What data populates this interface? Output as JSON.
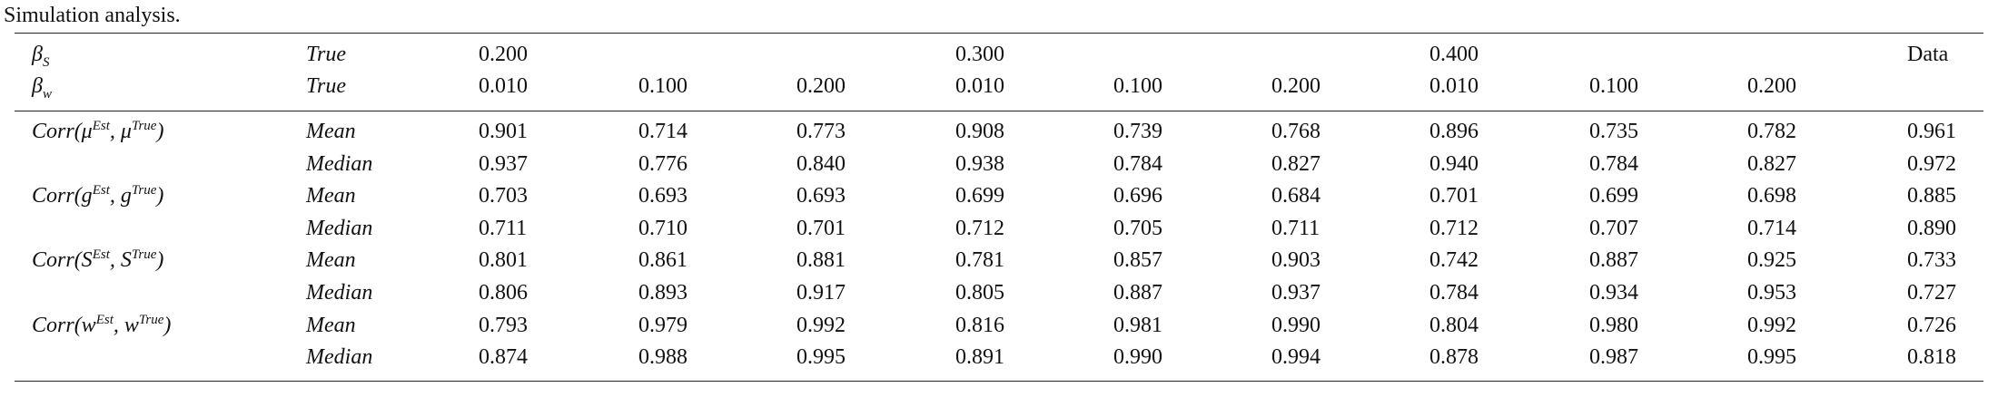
{
  "caption": "Simulation analysis.",
  "header": [
    {
      "label": [
        {
          "t": "β"
        },
        {
          "sub": "S"
        }
      ],
      "stat": "True",
      "cells": [
        "0.200",
        null,
        null,
        "0.300",
        null,
        null,
        "0.400",
        null,
        null,
        "Data"
      ]
    },
    {
      "label": [
        {
          "t": "β"
        },
        {
          "sub": "w"
        }
      ],
      "stat": "True",
      "cells": [
        "0.010",
        "0.100",
        "0.200",
        "0.010",
        "0.100",
        "0.200",
        "0.010",
        "0.100",
        "0.200",
        null
      ]
    }
  ],
  "groups": [
    {
      "label": [
        {
          "t": "Corr(μ"
        },
        {
          "sup": "Est"
        },
        {
          "t": ", μ"
        },
        {
          "sup": "True"
        },
        {
          "t": ")"
        }
      ],
      "rows": [
        {
          "stat": "Mean",
          "cells": [
            "0.901",
            "0.714",
            "0.773",
            "0.908",
            "0.739",
            "0.768",
            "0.896",
            "0.735",
            "0.782",
            "0.961"
          ]
        },
        {
          "stat": "Median",
          "cells": [
            "0.937",
            "0.776",
            "0.840",
            "0.938",
            "0.784",
            "0.827",
            "0.940",
            "0.784",
            "0.827",
            "0.972"
          ]
        }
      ]
    },
    {
      "label": [
        {
          "t": "Corr(g"
        },
        {
          "sup": "Est"
        },
        {
          "t": ", g"
        },
        {
          "sup": "True"
        },
        {
          "t": ")"
        }
      ],
      "rows": [
        {
          "stat": "Mean",
          "cells": [
            "0.703",
            "0.693",
            "0.693",
            "0.699",
            "0.696",
            "0.684",
            "0.701",
            "0.699",
            "0.698",
            "0.885"
          ]
        },
        {
          "stat": "Median",
          "cells": [
            "0.711",
            "0.710",
            "0.701",
            "0.712",
            "0.705",
            "0.711",
            "0.712",
            "0.707",
            "0.714",
            "0.890"
          ]
        }
      ]
    },
    {
      "label": [
        {
          "t": "Corr(S"
        },
        {
          "sup": "Est"
        },
        {
          "t": ", S"
        },
        {
          "sup": "True"
        },
        {
          "t": ")"
        }
      ],
      "rows": [
        {
          "stat": "Mean",
          "cells": [
            "0.801",
            "0.861",
            "0.881",
            "0.781",
            "0.857",
            "0.903",
            "0.742",
            "0.887",
            "0.925",
            "0.733"
          ]
        },
        {
          "stat": "Median",
          "cells": [
            "0.806",
            "0.893",
            "0.917",
            "0.805",
            "0.887",
            "0.937",
            "0.784",
            "0.934",
            "0.953",
            "0.727"
          ]
        }
      ]
    },
    {
      "label": [
        {
          "t": "Corr(w"
        },
        {
          "sup": "Est"
        },
        {
          "t": ", w"
        },
        {
          "sup": "True"
        },
        {
          "t": ")"
        }
      ],
      "rows": [
        {
          "stat": "Mean",
          "cells": [
            "0.793",
            "0.979",
            "0.992",
            "0.816",
            "0.981",
            "0.990",
            "0.804",
            "0.980",
            "0.992",
            "0.726"
          ]
        },
        {
          "stat": "Median",
          "cells": [
            "0.874",
            "0.988",
            "0.995",
            "0.891",
            "0.990",
            "0.994",
            "0.878",
            "0.987",
            "0.995",
            "0.818"
          ]
        }
      ]
    }
  ]
}
